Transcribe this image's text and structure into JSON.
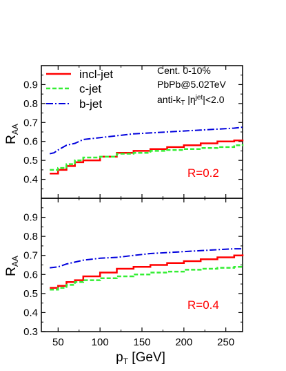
{
  "figure": {
    "ylabel_main": "R",
    "ylabel_sub": "AA",
    "xlabel_main": "p",
    "xlabel_sub": "T",
    "xlabel_rest": " [GeV]"
  },
  "annotations": {
    "line1": "Cent. 0-10%",
    "line2": "PbPb@5.02TeV",
    "line3_a": "anti-k",
    "line3_b": "T",
    "line3_c": " |η",
    "line3_d": "jet",
    "line3_e": "|<2.0"
  },
  "colors": {
    "incl": "#ff0000",
    "c": "#33ee33",
    "b": "#0000dd",
    "rlabel": "#ff0000"
  },
  "chart_data": [
    {
      "type": "line",
      "panel": "top",
      "label": "R=0.2",
      "xlim": [
        30,
        270
      ],
      "ylim": [
        0.3,
        1.0
      ],
      "xticks": [
        50,
        100,
        150,
        200,
        250
      ],
      "yticks": [
        0.4,
        0.5,
        0.6,
        0.7,
        0.8,
        0.9
      ],
      "legend": "top-left",
      "series": [
        {
          "name": "incl-jet",
          "style": "solid-step",
          "x": [
            40,
            50,
            60,
            70,
            80,
            100,
            120,
            140,
            160,
            180,
            200,
            220,
            240,
            260,
            270
          ],
          "y": [
            0.43,
            0.45,
            0.47,
            0.49,
            0.5,
            0.52,
            0.54,
            0.55,
            0.56,
            0.57,
            0.58,
            0.59,
            0.6,
            0.605,
            0.61
          ]
        },
        {
          "name": "c-jet",
          "style": "dashed-step",
          "x": [
            40,
            50,
            60,
            70,
            80,
            100,
            120,
            140,
            160,
            180,
            200,
            220,
            240,
            260,
            270
          ],
          "y": [
            0.45,
            0.46,
            0.48,
            0.5,
            0.515,
            0.52,
            0.535,
            0.54,
            0.55,
            0.555,
            0.56,
            0.565,
            0.57,
            0.58,
            0.585
          ]
        },
        {
          "name": "b-jet",
          "style": "dashdot",
          "x": [
            40,
            45,
            50,
            60,
            70,
            80,
            100,
            120,
            140,
            160,
            180,
            200,
            220,
            240,
            260,
            270
          ],
          "y": [
            0.535,
            0.54,
            0.555,
            0.58,
            0.59,
            0.61,
            0.62,
            0.63,
            0.64,
            0.645,
            0.65,
            0.655,
            0.66,
            0.665,
            0.67,
            0.675
          ]
        }
      ]
    },
    {
      "type": "line",
      "panel": "bottom",
      "label": "R=0.4",
      "xlim": [
        30,
        270
      ],
      "ylim": [
        0.3,
        1.0
      ],
      "xticks": [
        50,
        100,
        150,
        200,
        250
      ],
      "yticks": [
        0.3,
        0.4,
        0.5,
        0.6,
        0.7,
        0.8,
        0.9
      ],
      "series": [
        {
          "name": "incl-jet",
          "style": "solid-step",
          "x": [
            40,
            50,
            60,
            70,
            80,
            100,
            120,
            140,
            160,
            180,
            200,
            220,
            240,
            260,
            270
          ],
          "y": [
            0.53,
            0.54,
            0.56,
            0.57,
            0.59,
            0.61,
            0.63,
            0.64,
            0.65,
            0.66,
            0.67,
            0.68,
            0.69,
            0.7,
            0.705
          ]
        },
        {
          "name": "c-jet",
          "style": "dashed-step",
          "x": [
            40,
            50,
            60,
            70,
            80,
            100,
            120,
            140,
            160,
            180,
            200,
            220,
            240,
            260,
            270
          ],
          "y": [
            0.52,
            0.53,
            0.545,
            0.56,
            0.57,
            0.58,
            0.59,
            0.6,
            0.61,
            0.615,
            0.625,
            0.63,
            0.635,
            0.64,
            0.65
          ]
        },
        {
          "name": "b-jet",
          "style": "dashdot",
          "x": [
            40,
            50,
            60,
            70,
            80,
            100,
            120,
            140,
            160,
            180,
            200,
            220,
            240,
            260,
            270
          ],
          "y": [
            0.635,
            0.64,
            0.655,
            0.665,
            0.675,
            0.685,
            0.69,
            0.7,
            0.71,
            0.715,
            0.72,
            0.725,
            0.73,
            0.735,
            0.735
          ]
        }
      ]
    }
  ]
}
